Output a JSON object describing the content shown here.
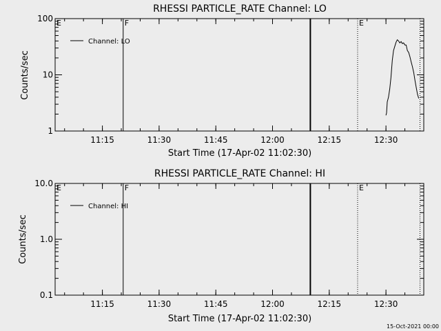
{
  "chart_data": [
    {
      "type": "line",
      "title": "RHESSI PARTICLE_RATE Channel: LO",
      "xlabel": "Start Time (17-Apr-02 11:02:30)",
      "ylabel": "Counts/sec",
      "y_scale": "log",
      "ylim": [
        1,
        100
      ],
      "y_ticks": [
        "1",
        "10",
        "100"
      ],
      "x_ticks": [
        "11:15",
        "11:30",
        "11:45",
        "12:00",
        "12:15",
        "12:30"
      ],
      "xlim": [
        "11:02:30",
        "12:40:00"
      ],
      "legend": {
        "label": "Channel: LO",
        "placement": "top-left"
      },
      "markers": [
        {
          "label": "E",
          "time": "11:02:30",
          "style": "none"
        },
        {
          "label": "F",
          "time": "11:20:30",
          "style": "solid"
        },
        {
          "label": "",
          "time": "12:10:00",
          "style": "solid-bold"
        },
        {
          "label": "E",
          "time": "12:22:30",
          "style": "dotted"
        },
        {
          "label": "",
          "time": "12:39:00",
          "style": "dotted"
        }
      ],
      "series": [
        {
          "name": "Channel: LO",
          "x": [
            "12:30:00",
            "12:30:10",
            "12:30:20",
            "12:30:40",
            "12:31:00",
            "12:31:20",
            "12:31:40",
            "12:32:00",
            "12:32:20",
            "12:32:40",
            "12:33:00",
            "12:33:20",
            "12:33:40",
            "12:34:00",
            "12:34:20",
            "12:34:40",
            "12:35:00",
            "12:35:20",
            "12:35:40",
            "12:36:00",
            "12:36:20",
            "12:36:40",
            "12:37:00",
            "12:37:20",
            "12:37:40",
            "12:38:00",
            "12:38:20",
            "12:38:40"
          ],
          "y": [
            1.9,
            2.1,
            3.3,
            4.0,
            5.6,
            9.0,
            18.0,
            27.0,
            32.0,
            38.0,
            42.0,
            40.0,
            37.0,
            39.0,
            36.0,
            37.0,
            34.0,
            34.0,
            27.0,
            25.0,
            21.0,
            17.0,
            14.0,
            11.0,
            8.0,
            6.0,
            4.5,
            3.8
          ]
        }
      ]
    },
    {
      "type": "line",
      "title": "RHESSI PARTICLE_RATE Channel: HI",
      "xlabel": "Start Time (17-Apr-02 11:02:30)",
      "ylabel": "Counts/sec",
      "y_scale": "log",
      "ylim": [
        0.1,
        10
      ],
      "y_ticks": [
        "0.1",
        "1.0",
        "10.0"
      ],
      "x_ticks": [
        "11:15",
        "11:30",
        "11:45",
        "12:00",
        "12:15",
        "12:30"
      ],
      "xlim": [
        "11:02:30",
        "12:40:00"
      ],
      "legend": {
        "label": "Channel: HI",
        "placement": "top-left"
      },
      "markers": [
        {
          "label": "E",
          "time": "11:02:30",
          "style": "none"
        },
        {
          "label": "F",
          "time": "11:20:30",
          "style": "solid"
        },
        {
          "label": "",
          "time": "12:10:00",
          "style": "solid-bold"
        },
        {
          "label": "E",
          "time": "12:22:30",
          "style": "dotted"
        },
        {
          "label": "",
          "time": "12:39:00",
          "style": "dotted"
        }
      ],
      "series": [
        {
          "name": "Channel: HI",
          "x": [],
          "y": []
        }
      ]
    }
  ],
  "footer": {
    "date": "15-Oct-2021 00:00"
  },
  "colors": {
    "background": "#ececec",
    "axes": "#000000",
    "line": "#000000"
  }
}
